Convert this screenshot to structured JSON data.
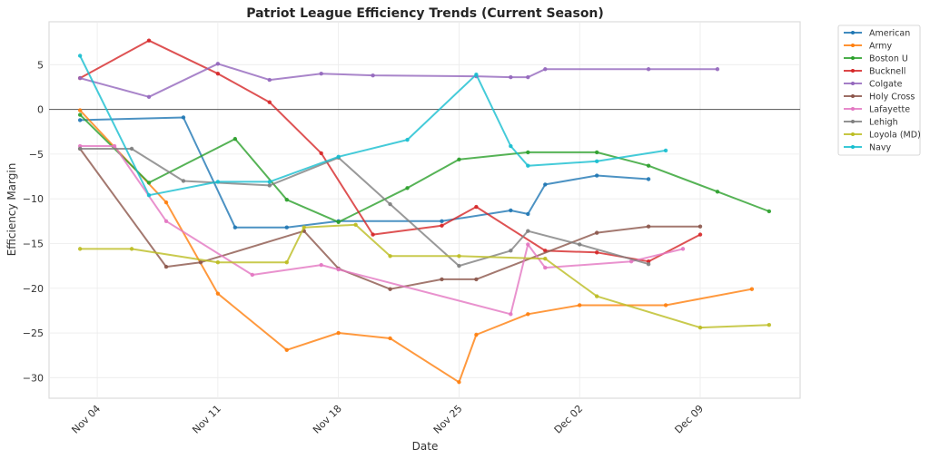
{
  "chart_data": {
    "type": "line",
    "title": "Patriot League Efficiency Trends (Current Season)",
    "xlabel": "Date",
    "ylabel": "Efficiency Margin",
    "x_axis_type": "date",
    "x_ticks": [
      {
        "day": 0,
        "label": "Nov 04"
      },
      {
        "day": 7,
        "label": "Nov 11"
      },
      {
        "day": 14,
        "label": "Nov 18"
      },
      {
        "day": 21,
        "label": "Nov 25"
      },
      {
        "day": 28,
        "label": "Dec 02"
      },
      {
        "day": 35,
        "label": "Dec 09"
      }
    ],
    "x_day_origin": "Nov 04",
    "xlim_days": [
      -2.8,
      40.8
    ],
    "y_ticks": [
      5,
      0,
      -5,
      -10,
      -15,
      -20,
      -25,
      -30
    ],
    "ylim": [
      -32.3,
      9.8
    ],
    "reference_line_y": 0,
    "grid": true,
    "legend_position": "outside-top-right",
    "series": [
      {
        "name": "American",
        "color": "#1f77b4",
        "points": [
          [
            -1,
            -1.2
          ],
          [
            5,
            -0.9
          ],
          [
            8,
            -13.2
          ],
          [
            11,
            -13.2
          ],
          [
            14,
            -12.5
          ],
          [
            20,
            -12.5
          ],
          [
            24,
            -11.3
          ],
          [
            25,
            -11.7
          ],
          [
            26,
            -8.4
          ],
          [
            29,
            -7.4
          ],
          [
            32,
            -7.8
          ]
        ]
      },
      {
        "name": "Army",
        "color": "#ff7f0e",
        "points": [
          [
            -1,
            -0.1
          ],
          [
            4,
            -10.4
          ],
          [
            7,
            -20.6
          ],
          [
            11,
            -26.9
          ],
          [
            14,
            -25.0
          ],
          [
            17,
            -25.6
          ],
          [
            21,
            -30.5
          ],
          [
            22,
            -25.2
          ],
          [
            25,
            -22.9
          ],
          [
            28,
            -21.9
          ],
          [
            33,
            -21.9
          ],
          [
            38,
            -20.1
          ]
        ]
      },
      {
        "name": "Boston U",
        "color": "#2ca02c",
        "points": [
          [
            -1,
            -0.6
          ],
          [
            3,
            -8.2
          ],
          [
            8,
            -3.3
          ],
          [
            11,
            -10.1
          ],
          [
            14,
            -12.6
          ],
          [
            18,
            -8.8
          ],
          [
            21,
            -5.6
          ],
          [
            25,
            -4.8
          ],
          [
            29,
            -4.8
          ],
          [
            32,
            -6.3
          ],
          [
            36,
            -9.2
          ],
          [
            39,
            -11.4
          ]
        ]
      },
      {
        "name": "Bucknell",
        "color": "#d62728",
        "points": [
          [
            -1,
            3.5
          ],
          [
            3,
            7.7
          ],
          [
            7,
            4.0
          ],
          [
            10,
            0.8
          ],
          [
            13,
            -4.9
          ],
          [
            16,
            -14.0
          ],
          [
            20,
            -13.0
          ],
          [
            22,
            -10.9
          ],
          [
            26,
            -15.8
          ],
          [
            29,
            -16.0
          ],
          [
            32,
            -17.0
          ],
          [
            35,
            -14.0
          ]
        ]
      },
      {
        "name": "Colgate",
        "color": "#9467bd",
        "points": [
          [
            -1,
            3.5
          ],
          [
            3,
            1.4
          ],
          [
            7,
            5.1
          ],
          [
            10,
            3.3
          ],
          [
            13,
            4.0
          ],
          [
            16,
            3.8
          ],
          [
            22,
            3.7
          ],
          [
            24,
            3.6
          ],
          [
            25,
            3.6
          ],
          [
            26,
            4.5
          ],
          [
            32,
            4.5
          ],
          [
            36,
            4.5
          ]
        ]
      },
      {
        "name": "Holy Cross",
        "color": "#8c564b",
        "points": [
          [
            -1,
            -4.4
          ],
          [
            4,
            -17.6
          ],
          [
            6,
            -17.1
          ],
          [
            12,
            -13.6
          ],
          [
            14,
            -17.8
          ],
          [
            17,
            -20.1
          ],
          [
            20,
            -19.0
          ],
          [
            22,
            -19.0
          ],
          [
            29,
            -13.8
          ],
          [
            32,
            -13.1
          ],
          [
            35,
            -13.1
          ]
        ]
      },
      {
        "name": "Lafayette",
        "color": "#e377c2",
        "points": [
          [
            -1,
            -4.1
          ],
          [
            1,
            -4.1
          ],
          [
            4,
            -12.5
          ],
          [
            9,
            -18.5
          ],
          [
            13,
            -17.4
          ],
          [
            14,
            -17.9
          ],
          [
            24,
            -22.9
          ],
          [
            25,
            -15.1
          ],
          [
            26,
            -17.7
          ],
          [
            31,
            -17.0
          ],
          [
            34,
            -15.6
          ]
        ]
      },
      {
        "name": "Lehigh",
        "color": "#7f7f7f",
        "points": [
          [
            -1,
            -4.4
          ],
          [
            2,
            -4.4
          ],
          [
            5,
            -8.0
          ],
          [
            10,
            -8.5
          ],
          [
            14,
            -5.4
          ],
          [
            17,
            -10.6
          ],
          [
            21,
            -17.5
          ],
          [
            24,
            -15.8
          ],
          [
            25,
            -13.6
          ],
          [
            28,
            -15.1
          ],
          [
            32,
            -17.3
          ]
        ]
      },
      {
        "name": "Loyola (MD)",
        "color": "#bcbd22",
        "points": [
          [
            -1,
            -15.6
          ],
          [
            2,
            -15.6
          ],
          [
            7,
            -17.1
          ],
          [
            11,
            -17.1
          ],
          [
            12,
            -13.2
          ],
          [
            15,
            -12.9
          ],
          [
            17,
            -16.4
          ],
          [
            21,
            -16.4
          ],
          [
            26,
            -16.7
          ],
          [
            29,
            -20.9
          ],
          [
            35,
            -24.4
          ],
          [
            39,
            -24.1
          ]
        ]
      },
      {
        "name": "Navy",
        "color": "#17becf",
        "points": [
          [
            -1,
            6.0
          ],
          [
            3,
            -9.6
          ],
          [
            7,
            -8.1
          ],
          [
            10,
            -8.1
          ],
          [
            14,
            -5.3
          ],
          [
            18,
            -3.4
          ],
          [
            22,
            3.9
          ],
          [
            24,
            -4.1
          ],
          [
            25,
            -6.3
          ],
          [
            29,
            -5.8
          ],
          [
            33,
            -4.6
          ]
        ]
      }
    ]
  }
}
